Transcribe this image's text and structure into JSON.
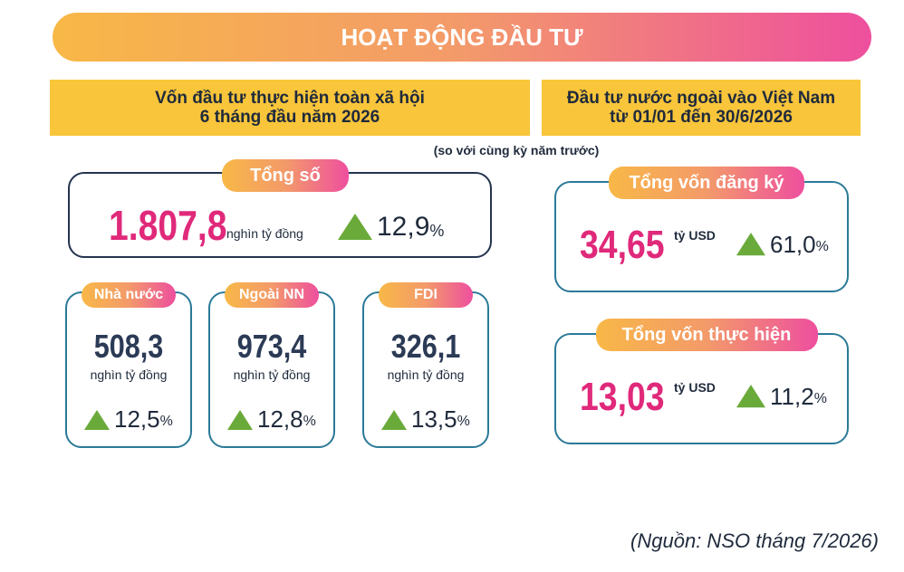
{
  "header": {
    "title": "HOẠT ĐỘNG ĐẦU TƯ"
  },
  "left": {
    "heading": [
      "Vốn đầu tư thực hiện toàn xã hội",
      "6 tháng đầu năm 2026"
    ],
    "total": {
      "label": "Tổng số",
      "value": "1.807,8",
      "unit": "nghìn tỷ đồng",
      "change": "12,9",
      "change_unit": "%"
    },
    "parts": [
      {
        "label": "Nhà nước",
        "value": "508,3",
        "unit": "nghìn tỷ đồng",
        "change": "12,5",
        "change_unit": "%"
      },
      {
        "label": "Ngoài NN",
        "value": "973,4",
        "unit": "nghìn tỷ đồng",
        "change": "12,8",
        "change_unit": "%"
      },
      {
        "label": "FDI",
        "value": "326,1",
        "unit": "nghìn tỷ đồng",
        "change": "13,5",
        "change_unit": "%"
      }
    ]
  },
  "note": "(so với cùng kỳ năm trước)",
  "right": {
    "heading": [
      "Đầu tư nước ngoài vào Việt Nam",
      "từ 01/01 đến 30/6/2026"
    ],
    "items": [
      {
        "label": "Tổng vốn đăng ký",
        "value": "34,65",
        "unit": "tỷ USD",
        "change": "61,0",
        "change_unit": "%"
      },
      {
        "label": "Tổng vốn thực hiện",
        "value": "13,03",
        "unit": "tỷ USD",
        "change": "11,2",
        "change_unit": "%"
      }
    ]
  },
  "source": "(Nguồn: NSO tháng 7/2026)"
}
